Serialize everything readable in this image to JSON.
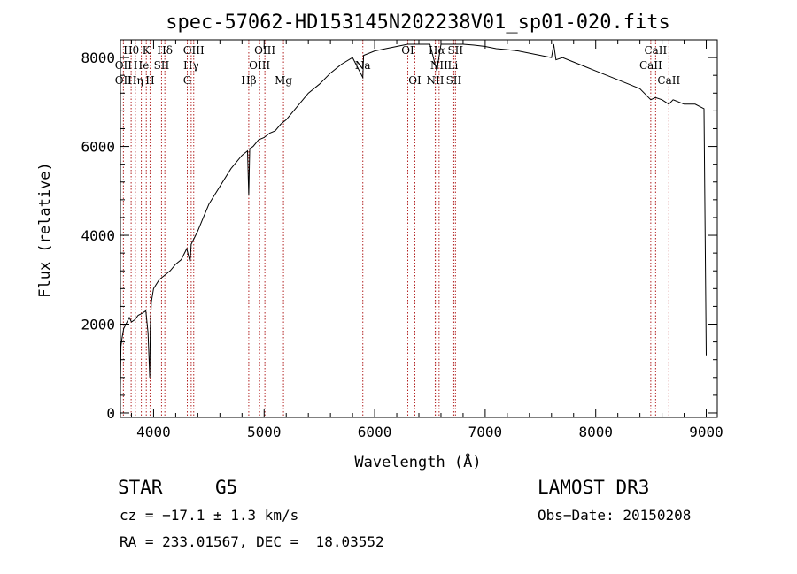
{
  "chart_data": {
    "type": "line",
    "title": "spec-57062-HD153145N202238V01_sp01-020.fits",
    "xlabel": "Wavelength (Å)",
    "ylabel": "Flux (relative)",
    "xlim": [
      3700,
      9100
    ],
    "ylim": [
      -100,
      8400
    ],
    "x_ticks": [
      4000,
      5000,
      6000,
      7000,
      8000,
      9000
    ],
    "y_ticks": [
      0,
      2000,
      4000,
      6000,
      8000
    ],
    "series": [
      {
        "x": [
          3700,
          3705,
          3715,
          3730,
          3750,
          3780,
          3800,
          3830,
          3860,
          3900,
          3930,
          3950,
          3965,
          3970,
          3980,
          4000,
          4050,
          4100,
          4150,
          4200,
          4250,
          4300,
          4330,
          4340,
          4360,
          4400,
          4450,
          4500,
          4550,
          4600,
          4650,
          4700,
          4750,
          4800,
          4850,
          4861,
          4870,
          4900,
          4950,
          5000,
          5050,
          5100,
          5150,
          5200,
          5300,
          5400,
          5500,
          5600,
          5700,
          5800,
          5893,
          5900,
          6000,
          6100,
          6200,
          6300,
          6400,
          6500,
          6563,
          6600,
          6700,
          6800,
          6900,
          7000,
          7100,
          7200,
          7300,
          7400,
          7500,
          7600,
          7620,
          7640,
          7700,
          7800,
          7900,
          8000,
          8100,
          8200,
          8300,
          8400,
          8498,
          8540,
          8600,
          8662,
          8700,
          8800,
          8900,
          8980,
          9000
        ],
        "y": [
          600,
          1500,
          1700,
          1900,
          2000,
          2150,
          2050,
          2100,
          2200,
          2250,
          2300,
          1800,
          800,
          1900,
          2500,
          2800,
          3000,
          3100,
          3200,
          3350,
          3450,
          3700,
          3400,
          3800,
          3900,
          4100,
          4400,
          4700,
          4900,
          5100,
          5300,
          5500,
          5650,
          5800,
          5900,
          4900,
          5950,
          6000,
          6150,
          6200,
          6300,
          6350,
          6500,
          6600,
          6900,
          7200,
          7400,
          7650,
          7850,
          8000,
          7550,
          8050,
          8150,
          8200,
          8250,
          8300,
          8300,
          8300,
          7700,
          8300,
          8300,
          8300,
          8280,
          8250,
          8200,
          8180,
          8150,
          8100,
          8050,
          8000,
          8300,
          7950,
          8000,
          7900,
          7800,
          7700,
          7600,
          7500,
          7400,
          7300,
          7050,
          7100,
          7050,
          6950,
          7050,
          6950,
          6950,
          6850,
          1300
        ]
      }
    ],
    "line_markers": [
      {
        "label": "Hθ",
        "x": 3797,
        "row": 0
      },
      {
        "label": "K",
        "x": 3934,
        "row": 0
      },
      {
        "label": "Hδ",
        "x": 4102,
        "row": 0
      },
      {
        "label": "OIII",
        "x": 4363,
        "row": 0
      },
      {
        "label": "OIII",
        "x": 5007,
        "row": 0
      },
      {
        "label": "OI",
        "x": 6300,
        "row": 0
      },
      {
        "label": "Hα",
        "x": 6563,
        "row": 0
      },
      {
        "label": "SII",
        "x": 6731,
        "row": 0
      },
      {
        "label": "CaII",
        "x": 8542,
        "row": 0
      },
      {
        "label": "OII",
        "x": 3727,
        "row": 1
      },
      {
        "label": "He",
        "x": 3889,
        "row": 1
      },
      {
        "label": "SII",
        "x": 4072,
        "row": 1
      },
      {
        "label": "Hγ",
        "x": 4340,
        "row": 1
      },
      {
        "label": "OIII",
        "x": 4959,
        "row": 1
      },
      {
        "label": "Na",
        "x": 5893,
        "row": 1
      },
      {
        "label": "NII",
        "x": 6583,
        "row": 1
      },
      {
        "label": "Li",
        "x": 6708,
        "row": 1
      },
      {
        "label": "CaII",
        "x": 8498,
        "row": 1
      },
      {
        "label": "OII",
        "x": 3727,
        "row": 2
      },
      {
        "label": "Hη",
        "x": 3835,
        "row": 2
      },
      {
        "label": "H",
        "x": 3968,
        "row": 2
      },
      {
        "label": "G",
        "x": 4305,
        "row": 2
      },
      {
        "label": "Hβ",
        "x": 4861,
        "row": 2
      },
      {
        "label": "Mg",
        "x": 5175,
        "row": 2
      },
      {
        "label": "OI",
        "x": 6364,
        "row": 2
      },
      {
        "label": "NII",
        "x": 6548,
        "row": 2
      },
      {
        "label": "SII",
        "x": 6716,
        "row": 2
      },
      {
        "label": "CaII",
        "x": 8662,
        "row": 2
      }
    ],
    "marker_color": "#b22222",
    "grid": false
  },
  "footer": {
    "object_class": "STAR",
    "subclass": "G5",
    "survey": "LAMOST DR3",
    "cz": "cz = −17.1 ± 1.3 km/s",
    "obs_date": "Obs−Date: 20150208",
    "coords": "RA = 233.01567, DEC =  18.03552"
  }
}
